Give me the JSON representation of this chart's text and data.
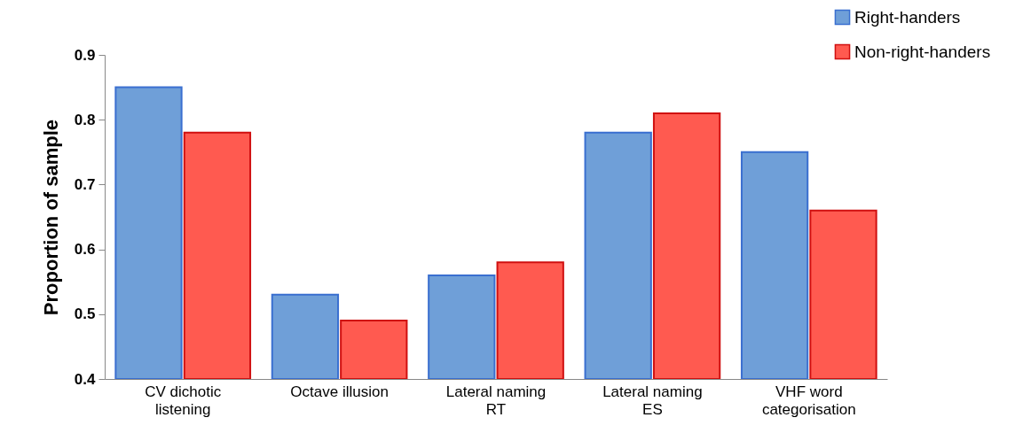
{
  "chart_data": {
    "type": "bar",
    "ylabel": "Proportion of sample",
    "categories": [
      "CV dichotic\nlistening",
      "Octave illusion",
      "Lateral naming\nRT",
      "Lateral naming\nES",
      "VHF word\ncategorisation"
    ],
    "series": [
      {
        "name": "Right-handers",
        "color": "#6f9fd8",
        "values": [
          0.85,
          0.53,
          0.56,
          0.78,
          0.75
        ]
      },
      {
        "name": "Non-right-handers",
        "color": "#ff5a50",
        "values": [
          0.78,
          0.49,
          0.58,
          0.81,
          0.66
        ]
      }
    ],
    "ylim": [
      0.4,
      0.9
    ],
    "yticks": [
      0.4,
      0.5,
      0.6,
      0.7,
      0.8,
      0.9
    ],
    "grid": false,
    "legend": "top right"
  }
}
